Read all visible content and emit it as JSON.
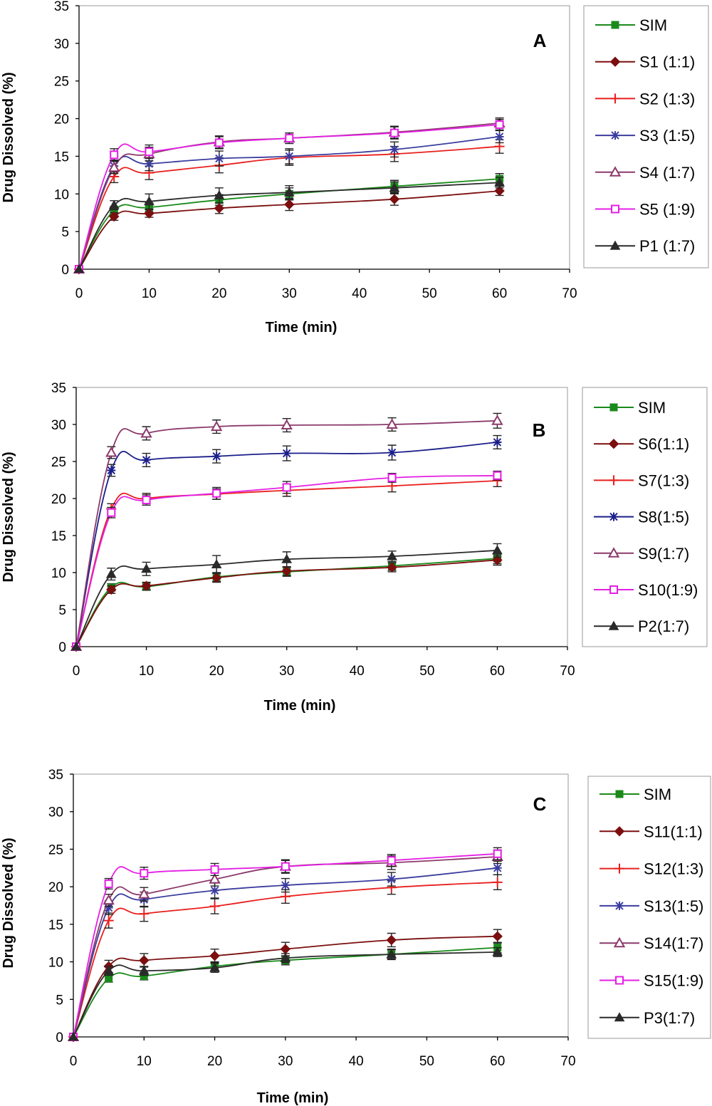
{
  "chart_data": [
    {
      "type": "line",
      "panel_label": "A",
      "xlabel": "Time (min)",
      "ylabel": "Drug Dissolved (%)",
      "xlim": [
        0,
        70
      ],
      "ylim": [
        0,
        35
      ],
      "xticks": [
        0,
        10,
        20,
        30,
        40,
        50,
        60,
        70
      ],
      "yticks": [
        0,
        5,
        10,
        15,
        20,
        25,
        30,
        35
      ],
      "grid": false,
      "legend_position": "right",
      "x": [
        0,
        5,
        10,
        20,
        30,
        45,
        60
      ],
      "series": [
        {
          "name": "SIM",
          "marker": "square",
          "color": "#1a8a1a",
          "values": [
            0,
            7.8,
            8.2,
            9.2,
            10.0,
            11.0,
            12.0
          ],
          "err": [
            0,
            0.5,
            0.6,
            0.7,
            0.8,
            0.8,
            0.7
          ]
        },
        {
          "name": "S1 (1:1)",
          "marker": "diamond",
          "color": "#7b0f0f",
          "values": [
            0,
            7.0,
            7.4,
            8.1,
            8.6,
            9.3,
            10.4
          ],
          "err": [
            0,
            0.5,
            0.5,
            0.7,
            0.8,
            0.8,
            0.6
          ]
        },
        {
          "name": "S2 (1:3)",
          "marker": "plus",
          "color": "#e8201e",
          "values": [
            0,
            12.3,
            12.8,
            13.8,
            14.8,
            15.3,
            16.3
          ],
          "err": [
            0,
            0.8,
            0.9,
            1.0,
            1.0,
            1.0,
            0.9
          ]
        },
        {
          "name": "S3 (1:5)",
          "marker": "star",
          "color": "#3b3d9e",
          "values": [
            0,
            13.7,
            14.0,
            14.7,
            15.0,
            15.9,
            17.6
          ],
          "err": [
            0,
            0.8,
            0.9,
            1.0,
            1.0,
            1.0,
            0.8
          ]
        },
        {
          "name": "S4 (1:7)",
          "marker": "triangle-open",
          "color": "#8c3a6c",
          "values": [
            0,
            13.5,
            15.3,
            16.9,
            17.4,
            18.2,
            19.4
          ],
          "err": [
            0,
            0.8,
            0.9,
            0.8,
            0.7,
            0.8,
            0.7
          ]
        },
        {
          "name": "S5 (1:9)",
          "marker": "square-open",
          "color": "#e41fe4",
          "values": [
            0,
            15.2,
            15.6,
            16.8,
            17.4,
            18.1,
            19.2
          ],
          "err": [
            0,
            0.8,
            0.9,
            0.8,
            0.7,
            0.8,
            0.7
          ]
        },
        {
          "name": "P1 (1:7)",
          "marker": "triangle",
          "color": "#2a2a2a",
          "values": [
            0,
            8.5,
            9.0,
            9.8,
            10.2,
            10.8,
            11.5
          ],
          "err": [
            0,
            0.6,
            1.0,
            1.0,
            0.9,
            0.8,
            0.7
          ]
        }
      ]
    },
    {
      "type": "line",
      "panel_label": "B",
      "xlabel": "Time (min)",
      "ylabel": "Drug Dissolved (%)",
      "xlim": [
        0,
        70
      ],
      "ylim": [
        0,
        35
      ],
      "xticks": [
        0,
        10,
        20,
        30,
        40,
        50,
        60,
        70
      ],
      "yticks": [
        0,
        5,
        10,
        15,
        20,
        25,
        30,
        35
      ],
      "grid": false,
      "legend_position": "right",
      "x": [
        0,
        5,
        10,
        20,
        30,
        45,
        60
      ],
      "series": [
        {
          "name": "SIM",
          "marker": "square",
          "color": "#1a8a1a",
          "values": [
            0,
            8.0,
            8.1,
            9.4,
            10.1,
            10.9,
            11.9
          ],
          "err": [
            0,
            0.5,
            0.5,
            0.6,
            0.6,
            0.6,
            0.7
          ]
        },
        {
          "name": "S6(1:1)",
          "marker": "diamond",
          "color": "#7b0f0f",
          "values": [
            0,
            7.7,
            8.2,
            9.3,
            10.2,
            10.7,
            11.7
          ],
          "err": [
            0,
            0.5,
            0.5,
            0.6,
            0.6,
            0.6,
            0.7
          ]
        },
        {
          "name": "S7(1:3)",
          "marker": "plus",
          "color": "#e8201e",
          "values": [
            0,
            18.6,
            20.0,
            20.6,
            21.1,
            21.7,
            22.4
          ],
          "err": [
            0,
            0.7,
            0.7,
            0.7,
            0.8,
            0.8,
            0.8
          ]
        },
        {
          "name": "S8(1:5)",
          "marker": "star",
          "color": "#1b1f8a",
          "values": [
            0,
            23.8,
            25.2,
            25.7,
            26.1,
            26.2,
            27.6
          ],
          "err": [
            0,
            0.8,
            0.9,
            0.9,
            1.0,
            1.0,
            0.9
          ]
        },
        {
          "name": "S9(1:7)",
          "marker": "triangle-open",
          "color": "#8c3a6c",
          "values": [
            0,
            26.2,
            28.8,
            29.7,
            29.9,
            30.0,
            30.5
          ],
          "err": [
            0,
            0.8,
            0.9,
            0.9,
            0.9,
            0.9,
            1.0
          ]
        },
        {
          "name": "S10(1:9)",
          "marker": "square-open",
          "color": "#e41fe4",
          "values": [
            0,
            18.1,
            19.8,
            20.7,
            21.5,
            22.8,
            23.1
          ],
          "err": [
            0,
            0.7,
            0.7,
            0.8,
            0.8,
            0.6,
            0.6
          ]
        },
        {
          "name": "P2(1:7)",
          "marker": "triangle",
          "color": "#2a2a2a",
          "values": [
            0,
            9.8,
            10.5,
            11.1,
            11.8,
            12.2,
            13.0
          ],
          "err": [
            0,
            0.8,
            0.9,
            1.2,
            1.0,
            0.7,
            0.9
          ]
        }
      ]
    },
    {
      "type": "line",
      "panel_label": "C",
      "xlabel": "Time (min)",
      "ylabel": "Drug Dissolved (%)",
      "xlim": [
        0,
        70
      ],
      "ylim": [
        0,
        35
      ],
      "xticks": [
        0,
        10,
        20,
        30,
        40,
        50,
        60,
        70
      ],
      "yticks": [
        0,
        5,
        10,
        15,
        20,
        25,
        30,
        35
      ],
      "grid": false,
      "legend_position": "right",
      "x": [
        0,
        5,
        10,
        20,
        30,
        45,
        60
      ],
      "series": [
        {
          "name": "SIM",
          "marker": "square",
          "color": "#1a8a1a",
          "values": [
            0,
            7.8,
            8.1,
            9.4,
            10.2,
            11.0,
            11.9
          ],
          "err": [
            0,
            0.5,
            0.5,
            0.6,
            0.6,
            0.7,
            0.7
          ]
        },
        {
          "name": "S11(1:1)",
          "marker": "diamond",
          "color": "#7b0f0f",
          "values": [
            0,
            9.4,
            10.2,
            10.8,
            11.7,
            12.9,
            13.4
          ],
          "err": [
            0,
            0.8,
            0.9,
            0.9,
            0.9,
            0.9,
            0.9
          ]
        },
        {
          "name": "S12(1:3)",
          "marker": "plus",
          "color": "#e8201e",
          "values": [
            0,
            15.5,
            16.4,
            17.4,
            18.7,
            19.9,
            20.6
          ],
          "err": [
            0,
            1.0,
            1.0,
            1.0,
            0.9,
            0.9,
            1.0
          ]
        },
        {
          "name": "S13(1:5)",
          "marker": "star",
          "color": "#3b3d9e",
          "values": [
            0,
            17.2,
            18.3,
            19.5,
            20.2,
            21.0,
            22.5
          ],
          "err": [
            0,
            0.9,
            1.0,
            1.0,
            0.9,
            0.9,
            0.9
          ]
        },
        {
          "name": "S14(1:7)",
          "marker": "triangle-open",
          "color": "#8c3a6c",
          "values": [
            0,
            18.2,
            19.0,
            21.0,
            22.7,
            23.2,
            24.0
          ],
          "err": [
            0,
            0.8,
            0.9,
            0.9,
            0.9,
            0.9,
            0.9
          ]
        },
        {
          "name": "S15(1:9)",
          "marker": "square-open",
          "color": "#e41fe4",
          "values": [
            0,
            20.4,
            21.8,
            22.3,
            22.7,
            23.5,
            24.4
          ],
          "err": [
            0,
            0.7,
            0.8,
            0.8,
            0.8,
            0.8,
            0.8
          ]
        },
        {
          "name": "P3(1:7)",
          "marker": "triangle",
          "color": "#2a2a2a",
          "values": [
            0,
            8.8,
            8.8,
            9.2,
            10.5,
            11.0,
            11.3
          ],
          "err": [
            0,
            0.6,
            0.6,
            0.6,
            0.6,
            0.6,
            0.6
          ]
        }
      ]
    }
  ]
}
